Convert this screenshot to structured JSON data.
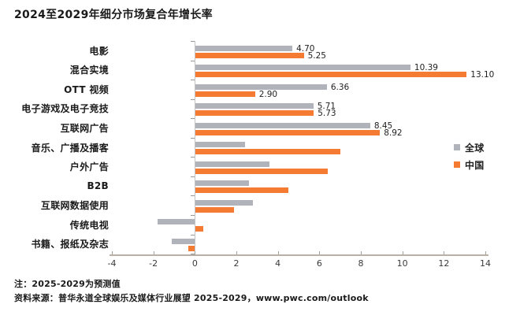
{
  "title": "2024至2029年细分市场复合年增长率",
  "legend": {
    "global": "全球",
    "china": "中国"
  },
  "notes": {
    "line1": "注：2025-2029为预测值",
    "line2": "资料来源：普华永道全球娱乐及媒体行业展望 2025-2029，www.pwc.com/outlook"
  },
  "colors": {
    "global": "#b0b3b9",
    "china": "#f57b33",
    "axis": "#b9b0a5",
    "text": "#1a1a1a"
  },
  "chart_data": {
    "type": "bar",
    "orientation": "horizontal",
    "title": "2024至2029年细分市场复合年增长率",
    "xlabel": "",
    "ylabel": "",
    "xlim": [
      -4,
      14
    ],
    "xticks": [
      -4,
      -2,
      0,
      2,
      4,
      6,
      8,
      10,
      12,
      14
    ],
    "grid": false,
    "legend_position": "right",
    "categories": [
      "电影",
      "混合实境",
      "OTT 视频",
      "电子游戏及电子竞技",
      "互联网广告",
      "音乐、广播及播客",
      "户外广告",
      "B2B",
      "互联网数据使用",
      "传统电视",
      "书籍、报纸及杂志"
    ],
    "series": [
      {
        "name": "全球",
        "color": "#b0b3b9",
        "values": [
          4.7,
          10.39,
          6.36,
          5.71,
          8.45,
          2.4,
          3.6,
          2.6,
          2.8,
          -1.8,
          -1.1
        ],
        "labels": [
          "4.70",
          "10.39",
          "6.36",
          "5.71",
          "8.45",
          "",
          "",
          "",
          "",
          "",
          ""
        ]
      },
      {
        "name": "中国",
        "color": "#f57b33",
        "values": [
          5.25,
          13.1,
          2.9,
          5.73,
          8.92,
          7.0,
          6.4,
          4.5,
          1.9,
          0.4,
          -0.3
        ],
        "labels": [
          "5.25",
          "13.10",
          "2.90",
          "5.73",
          "8.92",
          "",
          "",
          "",
          "",
          "",
          ""
        ]
      }
    ]
  }
}
